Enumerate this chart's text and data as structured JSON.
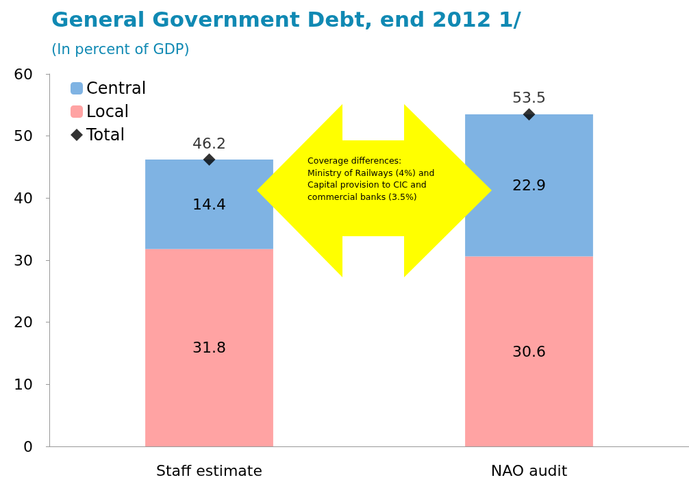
{
  "chart_data": {
    "type": "bar",
    "title": "General Government Debt, end 2012 1/",
    "subtitle": "(In percent of GDP)",
    "categories": [
      "Staff estimate",
      "NAO audit"
    ],
    "series": [
      {
        "name": "Local",
        "color": "#ffa3a3",
        "values": [
          31.8,
          30.6
        ]
      },
      {
        "name": "Central",
        "color": "#7fb3e3",
        "values": [
          14.4,
          22.9
        ]
      },
      {
        "name": "Total",
        "type": "scatter",
        "color": "#000000",
        "values": [
          46.2,
          53.5
        ],
        "x": [
          "Staff estimate",
          "NAO audit"
        ]
      }
    ],
    "stacked": true,
    "data_labels": true,
    "marker": "diamond",
    "legend": "top left",
    "grid": false,
    "ylim": [
      0,
      60
    ],
    "yticks": [
      0,
      10,
      20,
      30,
      40,
      50,
      60
    ],
    "annotations": [
      "Coverage differences: Ministry of Railways (4%) and Capital provision to CIC and commercial banks (3.5%)"
    ]
  }
}
